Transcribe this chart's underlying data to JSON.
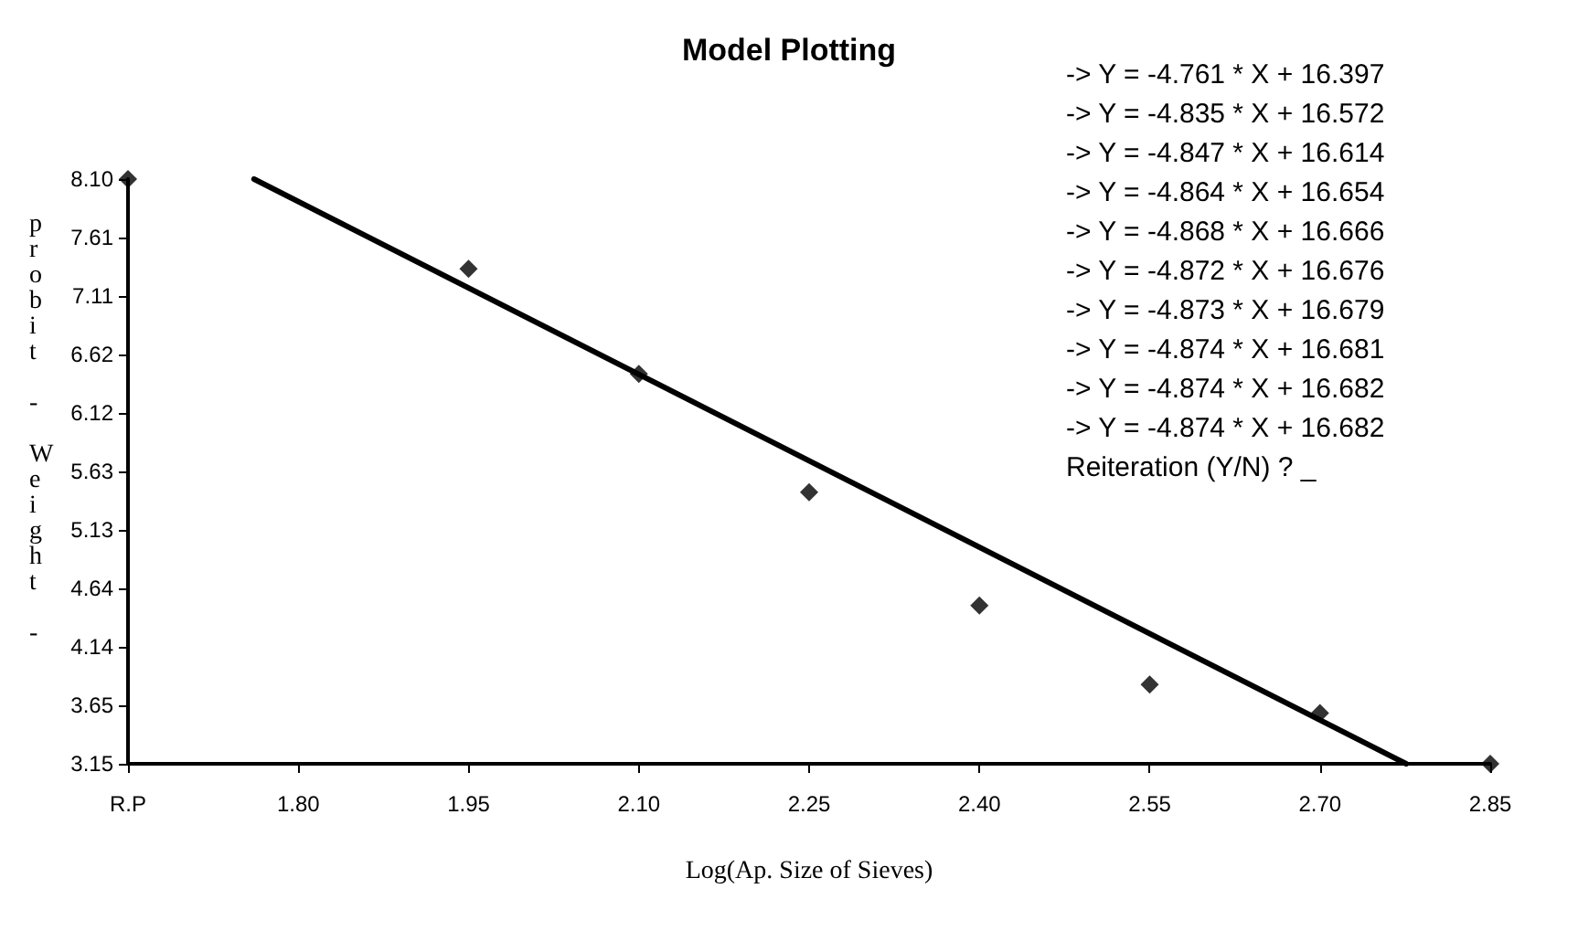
{
  "chart_data": {
    "type": "scatter",
    "title": "Model Plotting",
    "xlabel": "Log(Ap. Size of Sieves)",
    "ylabel": "probit - Weight -",
    "series": [
      {
        "color": "#000000",
        "marker": "diamond",
        "x": [
          1.65,
          1.95,
          2.1,
          2.25,
          2.4,
          2.55,
          2.7,
          2.85
        ],
        "values": [
          8.1,
          7.34,
          6.45,
          5.45,
          4.49,
          3.82,
          3.58,
          3.15
        ]
      },
      {
        "type": "line",
        "color": "#000000",
        "line_style": "solid",
        "x": [
          1.761,
          2.776
        ],
        "values": [
          8.1,
          3.15
        ]
      }
    ],
    "xlim": [
      1.65,
      2.85
    ],
    "xticks": [
      {
        "value": 1.65,
        "label": "R.P"
      },
      {
        "value": 1.8,
        "label": "1.80"
      },
      1.95,
      {
        "value": 2.1,
        "label": "2.10"
      },
      2.25,
      {
        "value": 2.4,
        "label": "2.40"
      },
      2.55,
      {
        "value": 2.7,
        "label": "2.70"
      },
      2.85
    ],
    "ylim": [
      3.15,
      8.1
    ],
    "yticks": [
      3.15,
      {
        "value": 3.645,
        "label": "3.65"
      },
      4.14,
      {
        "value": 4.635,
        "label": "4.64"
      },
      5.13,
      {
        "value": 5.625,
        "label": "5.63"
      },
      6.12,
      {
        "value": 6.615,
        "label": "6.62"
      },
      7.11,
      {
        "value": 7.605,
        "label": "7.61"
      },
      {
        "value": 8.1,
        "label": "8.10"
      }
    ],
    "grid": false,
    "annotations": [
      "-> Y = -4.761 * X + 16.397",
      "-> Y = -4.835 * X + 16.572",
      "-> Y = -4.847 * X + 16.614",
      "-> Y = -4.864 * X + 16.654",
      "-> Y = -4.868 * X + 16.666",
      "-> Y = -4.872 * X + 16.676",
      "-> Y = -4.873 * X + 16.679",
      "-> Y = -4.874 * X + 16.681",
      "-> Y = -4.874 * X + 16.682",
      "-> Y = -4.874 * X + 16.682",
      "Reiteration (Y/N) ? _"
    ]
  }
}
